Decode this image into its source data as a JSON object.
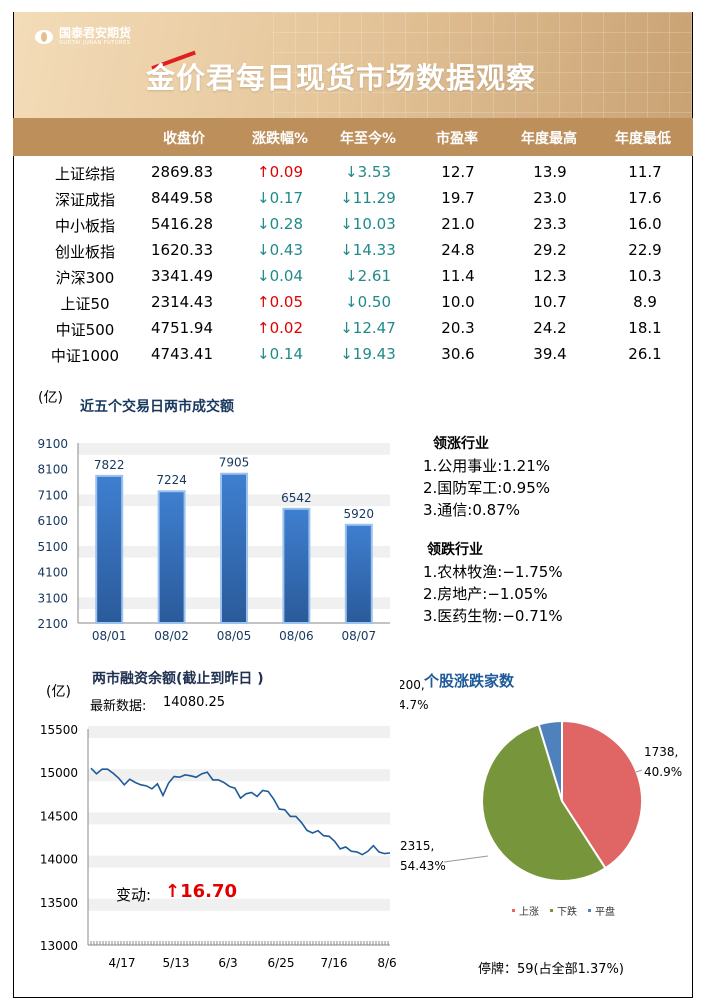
{
  "header": {
    "logo_cn": "国泰君安期货",
    "logo_en": "GUOTAI JUNAN FUTURES",
    "title": "金价君每日现货市场数据观察"
  },
  "table": {
    "columns": [
      "收盘价",
      "涨跌幅%",
      "年至今%",
      "市盈率",
      "年度最高",
      "年度最低"
    ],
    "rows": [
      {
        "name": "上证综指",
        "close": "2869.83",
        "chg": "↑0.09",
        "chg_dir": "up",
        "ytd": "↓3.53",
        "pe": "12.7",
        "high": "13.9",
        "low": "11.7"
      },
      {
        "name": "深证成指",
        "close": "8449.58",
        "chg": "↓0.17",
        "chg_dir": "down",
        "ytd": "↓11.29",
        "pe": "19.7",
        "high": "23.0",
        "low": "17.6"
      },
      {
        "name": "中小板指",
        "close": "5416.28",
        "chg": "↓0.28",
        "chg_dir": "down",
        "ytd": "↓10.03",
        "pe": "21.0",
        "high": "23.3",
        "low": "16.0"
      },
      {
        "name": "创业板指",
        "close": "1620.33",
        "chg": "↓0.43",
        "chg_dir": "down",
        "ytd": "↓14.33",
        "pe": "24.8",
        "high": "29.2",
        "low": "22.9"
      },
      {
        "name": "沪深300",
        "close": "3341.49",
        "chg": "↓0.04",
        "chg_dir": "down",
        "ytd": "↓2.61",
        "pe": "11.4",
        "high": "12.3",
        "low": "10.3"
      },
      {
        "name": "上证50",
        "close": "2314.43",
        "chg": "↑0.05",
        "chg_dir": "up",
        "ytd": "↓0.50",
        "pe": "10.0",
        "high": "10.7",
        "low": "8.9"
      },
      {
        "name": "中证500",
        "close": "4751.94",
        "chg": "↑0.02",
        "chg_dir": "up",
        "ytd": "↓12.47",
        "pe": "20.3",
        "high": "24.2",
        "low": "18.1"
      },
      {
        "name": "中证1000",
        "close": "4743.41",
        "chg": "↓0.14",
        "chg_dir": "down",
        "ytd": "↓19.43",
        "pe": "30.6",
        "high": "39.4",
        "low": "26.1"
      }
    ]
  },
  "sectors": {
    "lead_title": "领涨行业",
    "lead": [
      "1.公用事业:1.21%",
      "2.国防军工:0.95%",
      "3.通信:0.87%"
    ],
    "lag_title": "领跌行业",
    "lag": [
      "1.农林牧渔:−1.75%",
      "2.房地产:−1.05%",
      "3.医药生物:−0.71%"
    ]
  },
  "margin": {
    "latest_label": "最新数据:",
    "latest_value": "14080.25",
    "change_label": "变动:",
    "change_value": "↑16.70"
  },
  "suspended": "停牌：59(占全部1.37%)",
  "colors": {
    "header_bar": "#bd8f5b",
    "up": "#e00000",
    "down": "#1f8a8a",
    "bar": "#3a74c4",
    "line": "#1f5a9a"
  },
  "chart_data": [
    {
      "type": "bar",
      "title": "近五个交易日两市成交额",
      "unit": "(亿)",
      "categories": [
        "08/01",
        "08/02",
        "08/05",
        "08/06",
        "08/07"
      ],
      "values": [
        7822,
        7224,
        7905,
        6542,
        5920
      ],
      "ylim": [
        2100,
        9100
      ],
      "yticks": [
        9100,
        8100,
        7100,
        6100,
        5100,
        4100,
        3100,
        2100
      ],
      "grid": true
    },
    {
      "type": "line",
      "title": "两市融资余额(截止到昨日 )",
      "unit": "(亿)",
      "x_labels": [
        "4/17",
        "5/13",
        "6/3",
        "6/25",
        "7/16",
        "8/6"
      ],
      "ylim": [
        13000,
        15500
      ],
      "yticks": [
        15500,
        15000,
        14500,
        14000,
        13500,
        13000
      ],
      "values": [
        15046,
        14981,
        15035,
        15035,
        14988,
        14931,
        14854,
        14919,
        14881,
        14854,
        14842,
        14808,
        14865,
        14731,
        14873,
        14950,
        14942,
        14969,
        14958,
        14942,
        14981,
        15000,
        14911,
        14911,
        14881,
        14835,
        14815,
        14700,
        14750,
        14765,
        14719,
        14788,
        14777,
        14688,
        14573,
        14565,
        14488,
        14488,
        14419,
        14327,
        14296,
        14323,
        14265,
        14258,
        14200,
        14112,
        14135,
        14085,
        14077,
        14046,
        14085,
        14150,
        14077,
        14058,
        14065
      ]
    },
    {
      "type": "pie",
      "title": "个股涨跌家数",
      "slices": [
        {
          "name": "上涨",
          "value": 1738,
          "label": "1738,",
          "pct": "40.9%",
          "color": "#e06666"
        },
        {
          "name": "下跌",
          "value": 2315,
          "label": "2315,",
          "pct": "54.43%",
          "color": "#77953a"
        },
        {
          "name": "平盘",
          "value": 200,
          "label": "200,",
          "pct": "4.7%",
          "color": "#4f81bd"
        }
      ],
      "legend": "bottom"
    }
  ]
}
